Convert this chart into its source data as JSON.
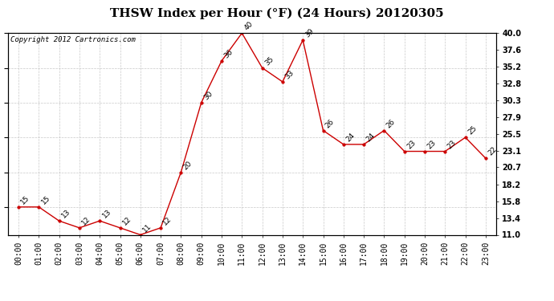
{
  "title": "THSW Index per Hour (°F) (24 Hours) 20120305",
  "copyright": "Copyright 2012 Cartronics.com",
  "hours": [
    "00:00",
    "01:00",
    "02:00",
    "03:00",
    "04:00",
    "05:00",
    "06:00",
    "07:00",
    "08:00",
    "09:00",
    "10:00",
    "11:00",
    "12:00",
    "13:00",
    "14:00",
    "15:00",
    "16:00",
    "17:00",
    "18:00",
    "19:00",
    "20:00",
    "21:00",
    "22:00",
    "23:00"
  ],
  "values": [
    15,
    15,
    13,
    12,
    13,
    12,
    11,
    12,
    20,
    30,
    36,
    40,
    35,
    33,
    39,
    26,
    24,
    24,
    26,
    23,
    23,
    23,
    25,
    22
  ],
  "ylim": [
    11.0,
    40.0
  ],
  "yticks_right": [
    11.0,
    13.4,
    15.8,
    18.2,
    20.7,
    23.1,
    25.5,
    27.9,
    30.3,
    32.8,
    35.2,
    37.6,
    40.0
  ],
  "line_color": "#cc0000",
  "marker_color": "#cc0000",
  "bg_color": "#ffffff",
  "grid_color": "#bbbbbb",
  "title_fontsize": 11,
  "copyright_fontsize": 6.5,
  "label_fontsize": 6.5,
  "tick_fontsize": 7
}
